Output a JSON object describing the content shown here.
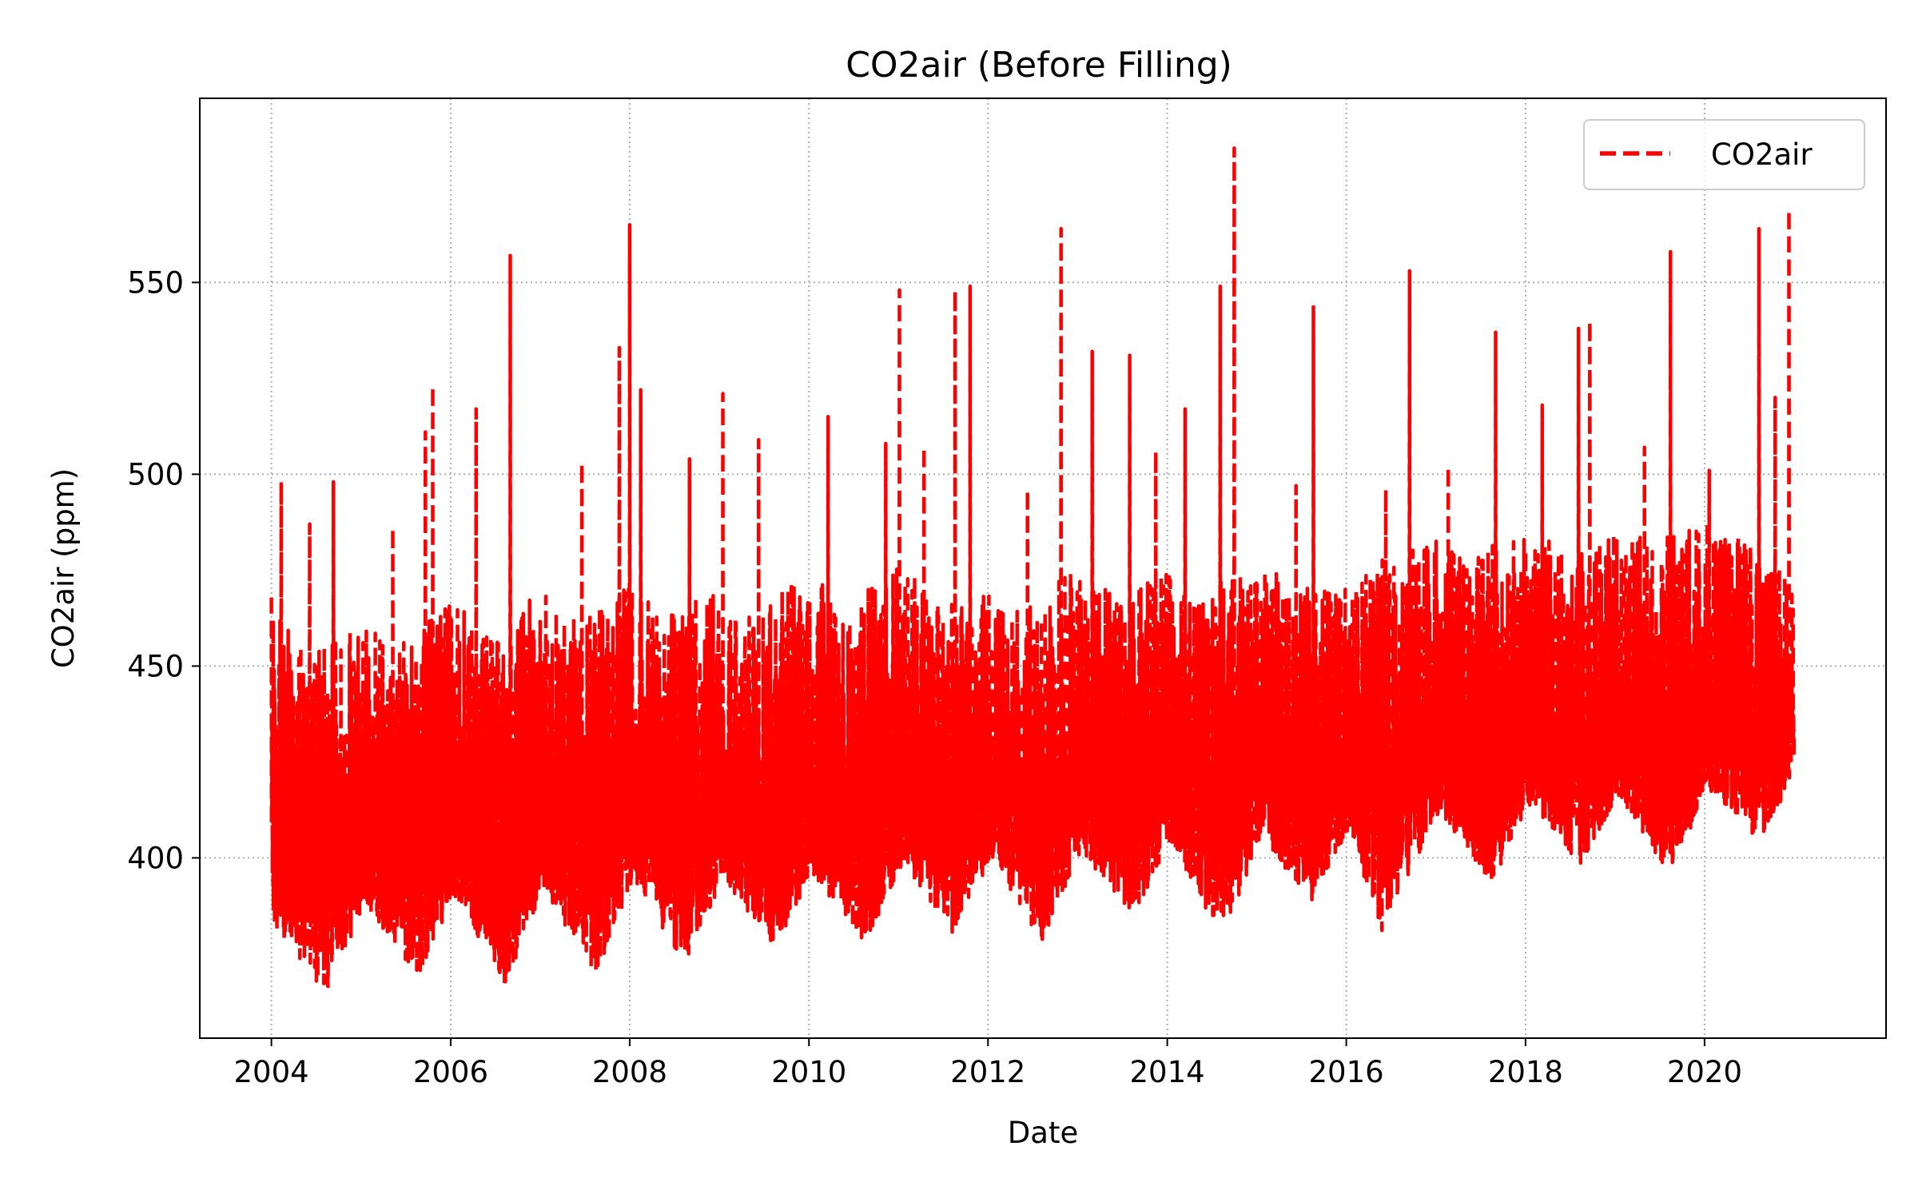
{
  "chart_data": {
    "type": "line",
    "title": "CO2air (Before Filling)",
    "xlabel": "Date",
    "ylabel": "CO2air (ppm)",
    "x_axis_type": "date",
    "xlim": [
      "2003-03-15",
      "2022-01-10"
    ],
    "ylim": [
      353,
      598
    ],
    "xticks": [
      "2004",
      "2006",
      "2008",
      "2010",
      "2012",
      "2014",
      "2016",
      "2018",
      "2020"
    ],
    "yticks": [
      400,
      450,
      500,
      550
    ],
    "grid": true,
    "grid_style": "dotted",
    "legend": {
      "placement": "top-right",
      "entries": [
        "CO2air"
      ]
    },
    "series": [
      {
        "name": "CO2air",
        "color": "#ff0000",
        "line_style": "dashed",
        "x_start": "2004-01-01",
        "x_end": "2020-12-31",
        "baseline_points": [
          [
            "2004-01-01",
            405
          ],
          [
            "2005-01-01",
            406
          ],
          [
            "2006-01-01",
            407
          ],
          [
            "2007-01-01",
            408
          ],
          [
            "2008-01-01",
            410
          ],
          [
            "2009-01-01",
            411
          ],
          [
            "2010-01-01",
            412
          ],
          [
            "2011-01-01",
            414
          ],
          [
            "2012-01-01",
            416
          ],
          [
            "2013-01-01",
            418
          ],
          [
            "2014-01-01",
            420
          ],
          [
            "2015-01-01",
            421
          ],
          [
            "2016-01-01",
            423
          ],
          [
            "2017-01-01",
            426
          ],
          [
            "2018-01-01",
            428
          ],
          [
            "2019-01-01",
            430
          ],
          [
            "2020-01-01",
            432
          ],
          [
            "2020-12-31",
            434
          ]
        ],
        "envelope_low": [
          [
            "2004-01-01",
            383
          ],
          [
            "2004-08-15",
            364
          ],
          [
            "2005-01-15",
            388
          ],
          [
            "2005-08-15",
            368
          ],
          [
            "2006-01-15",
            390
          ],
          [
            "2006-08-15",
            366
          ],
          [
            "2007-01-15",
            392
          ],
          [
            "2007-08-15",
            369
          ],
          [
            "2008-01-15",
            394
          ],
          [
            "2008-08-15",
            371
          ],
          [
            "2009-01-15",
            395
          ],
          [
            "2009-08-15",
            376
          ],
          [
            "2010-01-15",
            396
          ],
          [
            "2010-08-15",
            377
          ],
          [
            "2011-01-15",
            398
          ],
          [
            "2011-08-15",
            380
          ],
          [
            "2012-01-15",
            400
          ],
          [
            "2012-08-15",
            377
          ],
          [
            "2013-01-15",
            402
          ],
          [
            "2013-08-15",
            384
          ],
          [
            "2014-01-15",
            404
          ],
          [
            "2014-08-15",
            378
          ],
          [
            "2015-01-15",
            405
          ],
          [
            "2015-08-15",
            389
          ],
          [
            "2016-01-15",
            408
          ],
          [
            "2016-05-20",
            380
          ],
          [
            "2016-09-15",
            396
          ],
          [
            "2017-01-15",
            412
          ],
          [
            "2017-08-15",
            393
          ],
          [
            "2018-01-15",
            414
          ],
          [
            "2018-08-15",
            398
          ],
          [
            "2019-01-15",
            416
          ],
          [
            "2019-08-15",
            395
          ],
          [
            "2020-01-15",
            418
          ],
          [
            "2020-08-15",
            404
          ],
          [
            "2020-12-31",
            420
          ]
        ],
        "envelope_high": [
          [
            "2004-01-01",
            468
          ],
          [
            "2004-06-01",
            452
          ],
          [
            "2005-01-01",
            462
          ],
          [
            "2005-06-01",
            455
          ],
          [
            "2006-01-01",
            468
          ],
          [
            "2006-06-01",
            458
          ],
          [
            "2007-01-01",
            470
          ],
          [
            "2007-06-01",
            462
          ],
          [
            "2008-01-01",
            472
          ],
          [
            "2008-06-01",
            463
          ],
          [
            "2009-01-01",
            474
          ],
          [
            "2009-06-01",
            465
          ],
          [
            "2010-01-01",
            476
          ],
          [
            "2010-06-01",
            466
          ],
          [
            "2011-01-01",
            478
          ],
          [
            "2011-06-01",
            468
          ],
          [
            "2012-01-01",
            470
          ],
          [
            "2012-06-01",
            465
          ],
          [
            "2013-01-01",
            476
          ],
          [
            "2013-06-01",
            468
          ],
          [
            "2014-01-01",
            474
          ],
          [
            "2014-06-01",
            470
          ],
          [
            "2015-01-01",
            478
          ],
          [
            "2015-06-01",
            472
          ],
          [
            "2016-01-01",
            470
          ],
          [
            "2016-06-01",
            478
          ],
          [
            "2017-01-01",
            484
          ],
          [
            "2017-06-01",
            480
          ],
          [
            "2018-01-01",
            486
          ],
          [
            "2018-06-01",
            482
          ],
          [
            "2019-01-01",
            488
          ],
          [
            "2019-06-01",
            482
          ],
          [
            "2020-01-01",
            488
          ],
          [
            "2020-06-01",
            485
          ],
          [
            "2020-12-31",
            472
          ]
        ],
        "peaks": [
          [
            "2004-02-10",
            498
          ],
          [
            "2004-06-05",
            487
          ],
          [
            "2004-09-10",
            498
          ],
          [
            "2005-05-10",
            486
          ],
          [
            "2005-09-20",
            511
          ],
          [
            "2005-10-20",
            523
          ],
          [
            "2006-04-15",
            517
          ],
          [
            "2006-09-01",
            557
          ],
          [
            "2007-06-20",
            503
          ],
          [
            "2007-11-20",
            533
          ],
          [
            "2008-01-01",
            565
          ],
          [
            "2008-02-15",
            522
          ],
          [
            "2008-09-01",
            504
          ],
          [
            "2009-01-15",
            521
          ],
          [
            "2009-06-10",
            509
          ],
          [
            "2010-03-20",
            515
          ],
          [
            "2010-11-10",
            508
          ],
          [
            "2011-01-05",
            548
          ],
          [
            "2011-04-15",
            507
          ],
          [
            "2011-08-20",
            548
          ],
          [
            "2011-10-20",
            549
          ],
          [
            "2012-06-10",
            496
          ],
          [
            "2012-10-25",
            564
          ],
          [
            "2013-03-01",
            532
          ],
          [
            "2013-08-01",
            531
          ],
          [
            "2013-11-15",
            506
          ],
          [
            "2014-03-15",
            517
          ],
          [
            "2014-08-05",
            549
          ],
          [
            "2014-10-01",
            585
          ],
          [
            "2015-06-10",
            497
          ],
          [
            "2015-08-20",
            544
          ],
          [
            "2016-06-10",
            496
          ],
          [
            "2016-09-15",
            553
          ],
          [
            "2017-02-20",
            502
          ],
          [
            "2017-09-01",
            537
          ],
          [
            "2018-03-10",
            518
          ],
          [
            "2018-08-05",
            538
          ],
          [
            "2018-09-20",
            540
          ],
          [
            "2019-05-01",
            507
          ],
          [
            "2019-08-15",
            558
          ],
          [
            "2020-01-20",
            501
          ],
          [
            "2020-08-10",
            564
          ],
          [
            "2020-10-15",
            520
          ],
          [
            "2020-12-10",
            569
          ]
        ]
      }
    ]
  }
}
